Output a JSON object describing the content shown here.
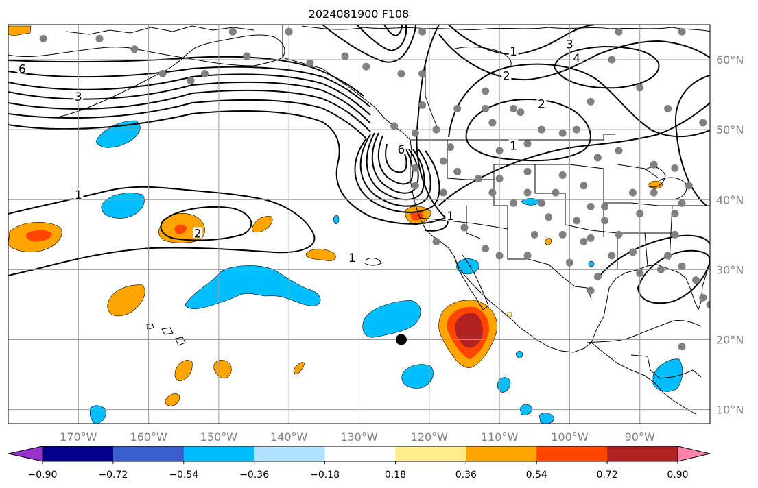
{
  "chart_data": {
    "type": "contour-map",
    "title": "2024081900 F108",
    "lon_range": [
      -180,
      -80
    ],
    "lat_range": [
      8,
      65
    ],
    "lon_ticks": [
      -170,
      -160,
      -150,
      -140,
      -130,
      -120,
      -110,
      -100,
      -90
    ],
    "lon_tick_labels": [
      "170°W",
      "160°W",
      "150°W",
      "140°W",
      "130°W",
      "120°W",
      "110°W",
      "100°W",
      "90°W"
    ],
    "lat_ticks": [
      10,
      20,
      30,
      40,
      50,
      60
    ],
    "lat_tick_labels": [
      "10°N",
      "20°N",
      "30°N",
      "40°N",
      "50°N",
      "60°N"
    ],
    "grid": true,
    "colorbar": {
      "orientation": "horizontal",
      "extend": "both",
      "bounds": [
        -0.9,
        -0.72,
        -0.54,
        -0.36,
        -0.18,
        0.18,
        0.36,
        0.54,
        0.72,
        0.9
      ],
      "tick_labels": [
        "−0.90",
        "−0.72",
        "−0.54",
        "−0.36",
        "−0.18",
        "0.18",
        "0.36",
        "0.54",
        "0.72",
        "0.90"
      ],
      "colors": [
        "#9932cc",
        "#00008b",
        "#3a5fcd",
        "#00bfff",
        "#b0e2ff",
        "#ffffff",
        "#ffec8b",
        "#ffa500",
        "#ff4500",
        "#b22222",
        "#ff82ab"
      ]
    },
    "contour_labels": [
      {
        "text": "6",
        "lon": -178,
        "lat": 58.5
      },
      {
        "text": "3",
        "lon": -170,
        "lat": 54.5
      },
      {
        "text": "1",
        "lon": -170,
        "lat": 40.5
      },
      {
        "text": "2",
        "lon": -153,
        "lat": 35
      },
      {
        "text": "1",
        "lon": -131,
        "lat": 31.5
      },
      {
        "text": "6",
        "lon": -124,
        "lat": 47
      },
      {
        "text": "1",
        "lon": -117,
        "lat": 37.5
      },
      {
        "text": "1",
        "lon": -108,
        "lat": 61
      },
      {
        "text": "2",
        "lon": -109,
        "lat": 57.5
      },
      {
        "text": "2",
        "lon": -104,
        "lat": 53.5
      },
      {
        "text": "1",
        "lon": -108,
        "lat": 47.5
      },
      {
        "text": "3",
        "lon": -100,
        "lat": 62
      },
      {
        "text": "4",
        "lon": -99,
        "lat": 60
      }
    ],
    "station_points": [
      [
        -175,
        63
      ],
      [
        -167,
        63
      ],
      [
        -162,
        61.5
      ],
      [
        -158,
        58
      ],
      [
        -154,
        57
      ],
      [
        -152,
        58
      ],
      [
        -148,
        64
      ],
      [
        -146,
        60.5
      ],
      [
        -140,
        64
      ],
      [
        -137,
        59.5
      ],
      [
        -132,
        60.5
      ],
      [
        -129,
        59
      ],
      [
        -124,
        58
      ],
      [
        -121,
        64
      ],
      [
        -121,
        58
      ],
      [
        -121,
        53.5
      ],
      [
        -125,
        50.5
      ],
      [
        -122,
        49.5
      ],
      [
        -119,
        50
      ],
      [
        -117,
        47.5
      ],
      [
        -116,
        53
      ],
      [
        -112,
        55.5
      ],
      [
        -111,
        51
      ],
      [
        -110,
        47
      ],
      [
        -112,
        53
      ],
      [
        -108,
        53
      ],
      [
        -107,
        52.5
      ],
      [
        -106,
        48
      ],
      [
        -104,
        50
      ],
      [
        -101,
        49.5
      ],
      [
        -99,
        50
      ],
      [
        -97,
        54
      ],
      [
        -93,
        47
      ],
      [
        -96,
        46
      ],
      [
        -98,
        42
      ],
      [
        -101,
        43.5
      ],
      [
        -103,
        37.5
      ],
      [
        -101,
        35
      ],
      [
        -100,
        31
      ],
      [
        -99,
        37
      ],
      [
        -97,
        34.5
      ],
      [
        -95,
        39
      ],
      [
        -93,
        35
      ],
      [
        -91,
        32.5
      ],
      [
        -94,
        32
      ],
      [
        -96,
        29
      ],
      [
        -97,
        27
      ],
      [
        -90,
        38
      ],
      [
        -91,
        41
      ],
      [
        -88,
        41
      ],
      [
        -88,
        45
      ],
      [
        -85,
        44.5
      ],
      [
        -84,
        39.5
      ],
      [
        -83,
        42
      ],
      [
        -85,
        35
      ],
      [
        -86,
        32
      ],
      [
        -87,
        30
      ],
      [
        -84,
        30.5
      ],
      [
        -82,
        28.5
      ],
      [
        -81,
        26
      ],
      [
        -80,
        25
      ],
      [
        -84,
        19
      ],
      [
        -86,
        53
      ],
      [
        -90,
        56
      ],
      [
        -94,
        60
      ],
      [
        -93,
        64
      ],
      [
        -84,
        64
      ],
      [
        -81,
        51
      ],
      [
        -85,
        38
      ],
      [
        -90,
        29.5
      ],
      [
        -106,
        44
      ],
      [
        -108,
        39.5
      ],
      [
        -111,
        41
      ],
      [
        -113,
        43
      ],
      [
        -116,
        44
      ],
      [
        -118,
        45.5
      ],
      [
        -122,
        44.5
      ],
      [
        -122,
        42
      ],
      [
        -118,
        41
      ],
      [
        -115,
        36
      ],
      [
        -112,
        33
      ],
      [
        -110,
        32
      ],
      [
        -106,
        32
      ],
      [
        -105,
        35
      ],
      [
        -104,
        39.5
      ],
      [
        -110,
        43
      ],
      [
        -106,
        41
      ],
      [
        -102,
        41
      ],
      [
        -97,
        39
      ],
      [
        -95,
        37
      ],
      [
        -98,
        34
      ],
      [
        -119,
        34
      ]
    ],
    "marker": {
      "lon": -124,
      "lat": 20
    }
  }
}
